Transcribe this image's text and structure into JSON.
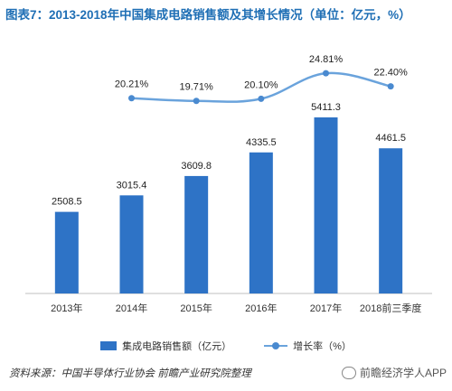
{
  "title": "图表7：2013-2018年中国集成电路销售额及其增长情况（单位：亿元，%）",
  "chart_data": {
    "type": "bar",
    "categories": [
      "2013年",
      "2014年",
      "2015年",
      "2016年",
      "2017年",
      "2018前三季度"
    ],
    "series": [
      {
        "name": "集成电路销售额（亿元）",
        "type": "bar",
        "values": [
          2508.5,
          3015.4,
          3609.8,
          4335.5,
          5411.3,
          4461.5
        ],
        "labels": [
          "2508.5",
          "3015.4",
          "3609.8",
          "4335.5",
          "5411.3",
          "4461.5"
        ],
        "color": "#2e73c6"
      },
      {
        "name": "增长率（%）",
        "type": "line",
        "values": [
          null,
          20.21,
          19.71,
          20.1,
          24.81,
          22.4
        ],
        "labels": [
          "",
          "20.21%",
          "19.71%",
          "20.10%",
          "24.81%",
          "22.40%"
        ],
        "color": "#5b9bd5"
      }
    ],
    "grid": false,
    "legend_position": "bottom"
  },
  "legend": {
    "bar_label": "集成电路销售额（亿元）",
    "line_label": "增长率（%）"
  },
  "source": "资料来源：中国半导体行业协会 前瞻产业研究院整理",
  "watermark": "前瞻经济学人APP"
}
